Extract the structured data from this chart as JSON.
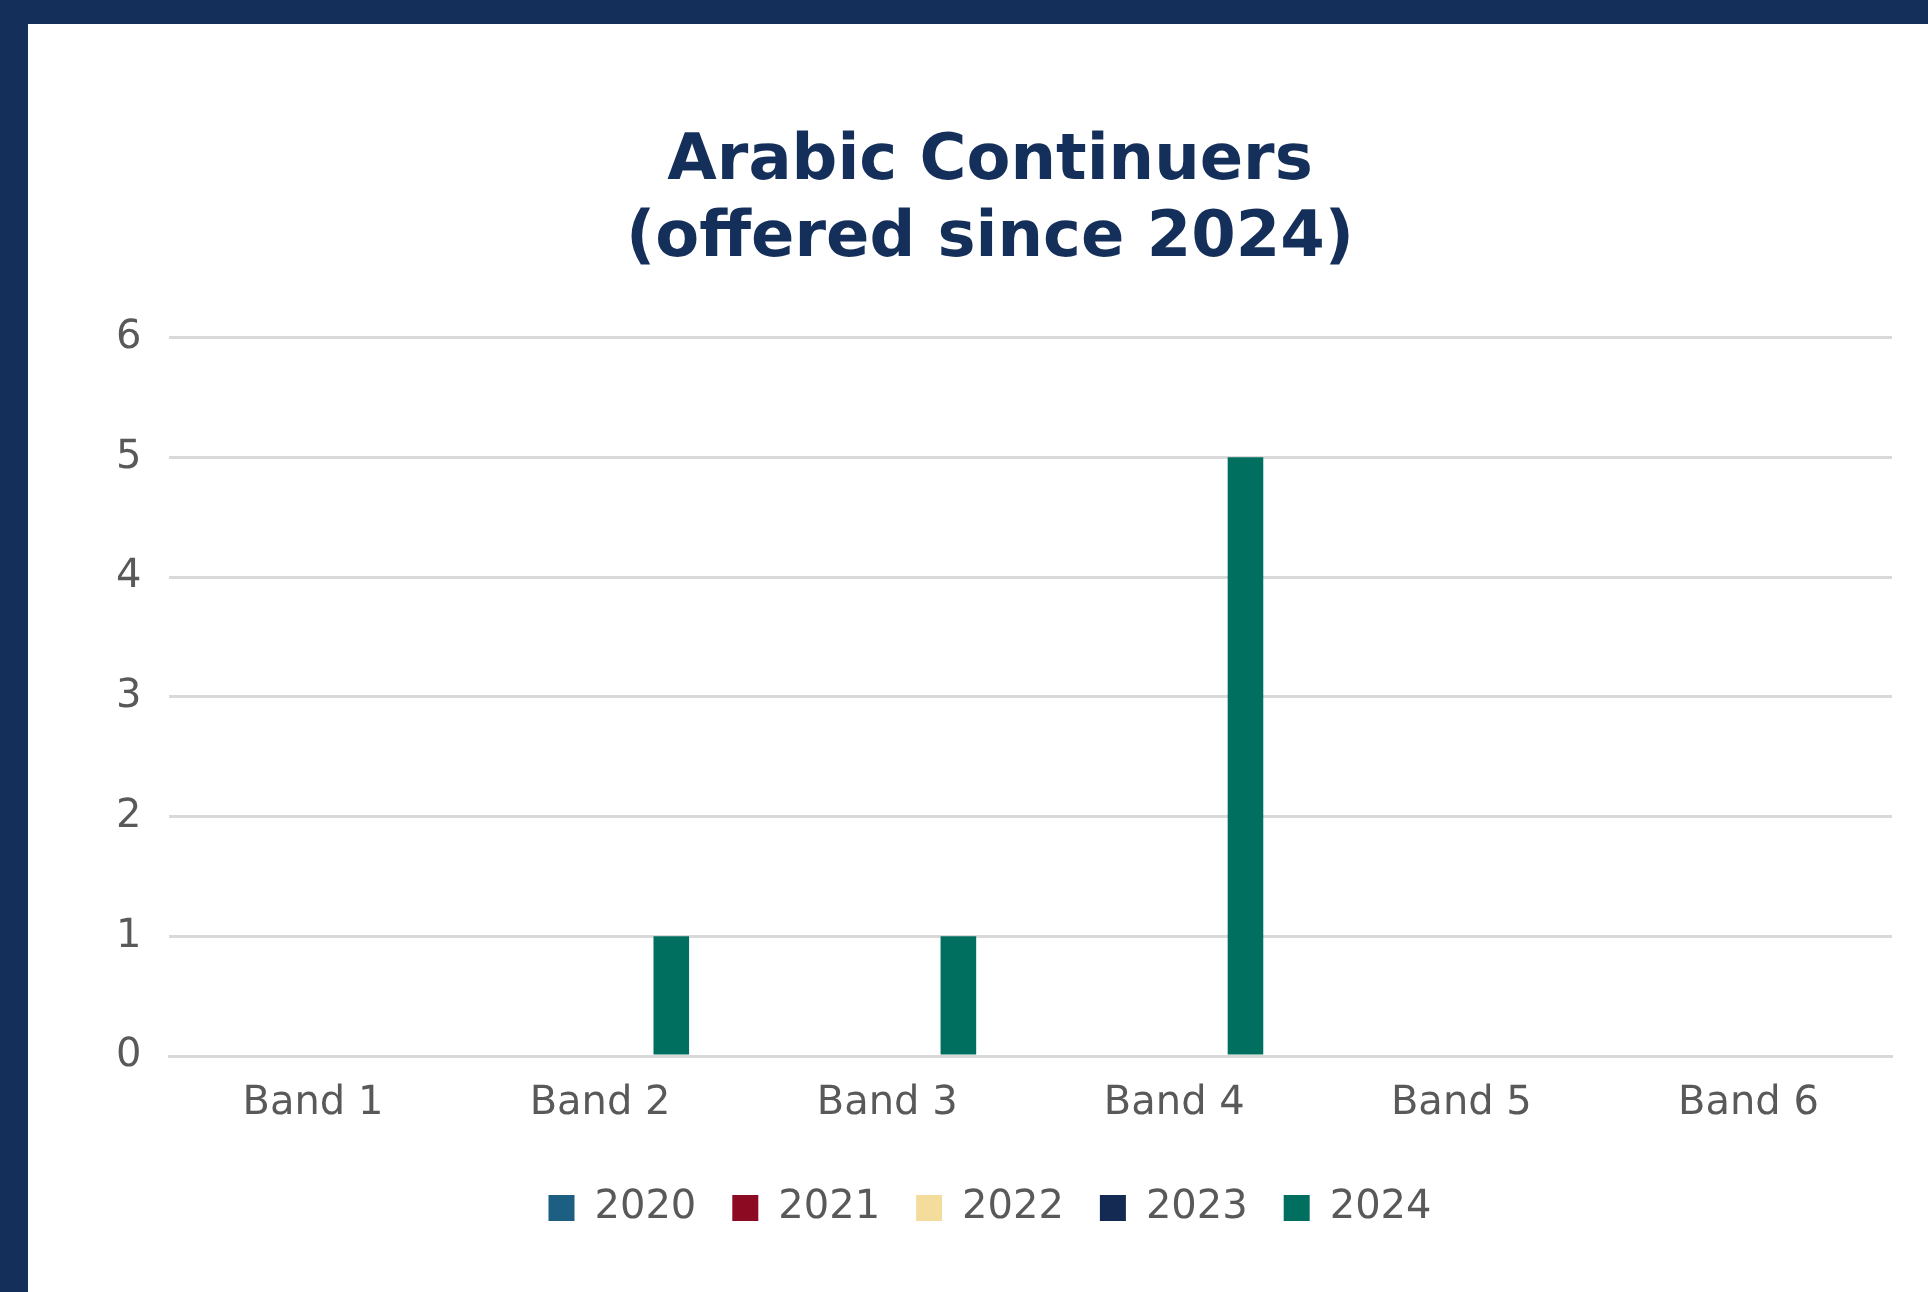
{
  "chart_data": {
    "type": "bar",
    "title": "Arabic Continuers\n(offered since 2024)",
    "categories": [
      "Band 1",
      "Band 2",
      "Band 3",
      "Band 4",
      "Band 5",
      "Band 6"
    ],
    "series": [
      {
        "name": "2020",
        "color": "#1c5f82",
        "values": [
          0,
          0,
          0,
          0,
          0,
          0
        ]
      },
      {
        "name": "2021",
        "color": "#8c0a22",
        "values": [
          0,
          0,
          0,
          0,
          0,
          0
        ]
      },
      {
        "name": "2022",
        "color": "#f3dc9c",
        "values": [
          0,
          0,
          0,
          0,
          0,
          0
        ]
      },
      {
        "name": "2023",
        "color": "#152a52",
        "values": [
          0,
          0,
          0,
          0,
          0,
          0
        ]
      },
      {
        "name": "2024",
        "color": "#006f5f",
        "values": [
          0,
          1,
          1,
          5,
          0,
          0
        ]
      }
    ],
    "ylim": [
      0,
      6
    ],
    "yticks": [
      0,
      1,
      2,
      3,
      4,
      5,
      6
    ],
    "grid": "y",
    "legend": "bottom"
  }
}
